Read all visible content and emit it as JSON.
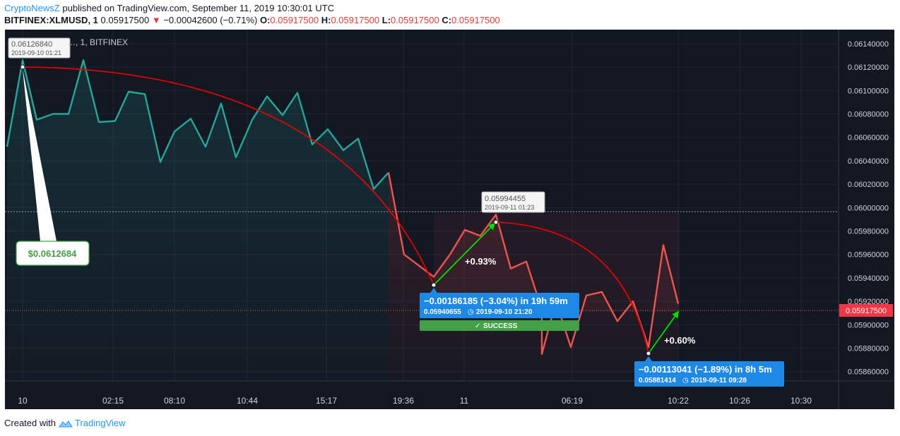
{
  "header": {
    "publisher": "CryptoNewsZ",
    "published_text": "published on TradingView.com, September 11, 2019 10:30:01 UTC",
    "symbol": "BITFINEX:XLMUSD, 1",
    "last": "0.05917500",
    "change": "−0.00042600 (−0.71%)",
    "o_label": "O:",
    "o_value": "0.05917500",
    "h_label": "H:",
    "h_value": "0.05917500",
    "l_label": "L:",
    "l_value": "0.05917500",
    "c_label": "C:",
    "c_value": "0.05917500",
    "legend_partial": "…, 1, BITFINEX"
  },
  "footer": {
    "created_with": "Created with",
    "brand": "TradingView"
  },
  "colors": {
    "background": "#131722",
    "up_line": "#26a69a",
    "down_line": "#ef5350",
    "arc": "#e00000",
    "arrow": "#00e000",
    "info_box": "#1e88e5",
    "success": "#43a047",
    "price_tag": "#f23645"
  },
  "chart_data": {
    "type": "line",
    "x_ticks": [
      "10",
      "02:15",
      "08:10",
      "10:44",
      "15:17",
      "19:36",
      "11",
      "06:19",
      "10:22",
      "10:26",
      "10:30"
    ],
    "y_ticks": [
      "0.06140000",
      "0.06120000",
      "0.06100000",
      "0.06080000",
      "0.06060000",
      "0.06040000",
      "0.06020000",
      "0.06000000",
      "0.05980000",
      "0.05960000",
      "0.05940000",
      "0.05920000",
      "0.05900000",
      "0.05880000",
      "0.05860000"
    ],
    "ylim": [
      0.05852,
      0.06152
    ],
    "last_price_label": "0.05917500",
    "series_teal": [
      0.06052,
      0.06126,
      0.06075,
      0.0608,
      0.0608,
      0.06126,
      0.06073,
      0.06074,
      0.06099,
      0.06097,
      0.06039,
      0.06065,
      0.06076,
      0.06052,
      0.06089,
      0.06043,
      0.06075,
      0.06095,
      0.06079,
      0.06098,
      0.06054,
      0.06067,
      0.06049,
      0.06059,
      0.06016,
      0.0603
    ],
    "series_red": [
      0.0603,
      0.0596,
      0.05941,
      0.0596,
      0.05981,
      0.05976,
      0.05994,
      0.05948,
      0.05954,
      0.05913,
      0.05875,
      0.0592,
      0.05881,
      0.05925,
      0.05928,
      0.05903,
      0.0592,
      0.05881,
      0.05968,
      0.05918
    ],
    "measure_1": {
      "text": "−0.00186185 (−3.04%) in 19h 59m",
      "sub_price": "0.05940655",
      "sub_date": "2019-09-10  21:20",
      "status": "SUCCESS"
    },
    "measure_2": {
      "text": "−0.00113041 (−1.89%) in 8h 5m",
      "sub_price": "0.05881414",
      "sub_date": "2019-09-11  09:28"
    },
    "tag_high": {
      "price": "0.06126840",
      "date": "2019-09-10 01:21"
    },
    "tag_mid": {
      "price": "0.05994455",
      "date": "2019-09-11 01:23"
    },
    "callout": "$0.0612684",
    "gain_1": "+0.93%",
    "gain_2": "+0.60%"
  }
}
